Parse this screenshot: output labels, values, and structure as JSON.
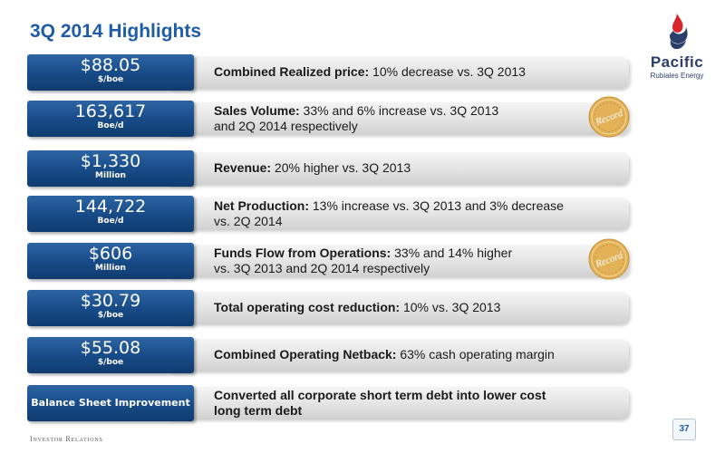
{
  "slide": {
    "title": "3Q 2014 Highlights",
    "footer": "Investor Relations",
    "page_number": "37"
  },
  "logo": {
    "name": "Pacific",
    "subtitle": "Rubiales Energy"
  },
  "highlights": [
    {
      "value": "$88.05",
      "unit": "$/boe",
      "label": "Combined Realized price:",
      "text": " 10% decrease vs. 3Q 2013",
      "text2": ""
    },
    {
      "value": "163,617",
      "unit": "Boe/d",
      "label": "Sales Volume:",
      "text": " 33% and 6% increase vs. 3Q 2013",
      "text2": "and 2Q 2014 respectively",
      "record": "Record"
    },
    {
      "value": "$1,330",
      "unit": "Million",
      "label": "Revenue:",
      "text": " 20% higher vs. 3Q 2013",
      "text2": ""
    },
    {
      "value": "144,722",
      "unit": "Boe/d",
      "label": "Net Production:",
      "text": " 13% increase vs. 3Q 2013 and 3% decrease",
      "text2": "vs. 2Q 2014"
    },
    {
      "value": "$606",
      "unit": "Million",
      "label": "Funds Flow from Operations:",
      "text": " 33% and 14% higher",
      "text2": "vs. 3Q 2013 and 2Q 2014 respectively",
      "record": "Record"
    },
    {
      "value": "$30.79",
      "unit": "$/boe",
      "label": "Total operating cost reduction:",
      "text": " 10% vs. 3Q 2013",
      "text2": ""
    },
    {
      "value": "$55.08",
      "unit": "$/boe",
      "label": "Combined Operating Netback:",
      "text": "  63% cash operating margin",
      "text2": ""
    },
    {
      "badge_text": "Balance Sheet Improvement",
      "label": "Converted all corporate short term debt into lower cost",
      "text": "",
      "text2": "long term debt"
    }
  ],
  "colors": {
    "title": "#1f5ca8",
    "badge": "#174a86",
    "logo_red": "#d8262c",
    "logo_blue": "#2b3f6b",
    "seal": "#e3b258"
  },
  "icons": {
    "logo_mark": "flame-drop-icon",
    "seal": "record-seal-icon"
  }
}
